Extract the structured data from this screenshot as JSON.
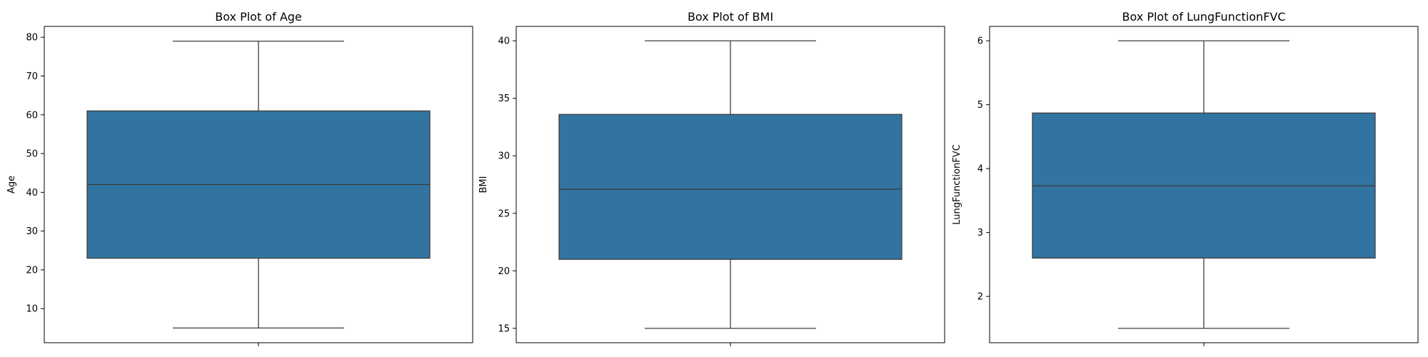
{
  "colors": {
    "box_fill": "#3274a1",
    "line": "#3d3d3d",
    "axis": "#000000",
    "background": "#ffffff"
  },
  "chart_data": [
    {
      "type": "box",
      "title": "Box Plot of Age",
      "xlabel": "",
      "ylabel": "Age",
      "ylim": [
        1.2,
        82.8
      ],
      "yticks": [
        10,
        20,
        30,
        40,
        50,
        60,
        70,
        80
      ],
      "grid": false,
      "box": {
        "whisker_low": 5,
        "q1": 23,
        "median": 42,
        "q3": 61,
        "whisker_high": 79
      }
    },
    {
      "type": "box",
      "title": "Box Plot of BMI",
      "xlabel": "",
      "ylabel": "BMI",
      "ylim": [
        13.75,
        41.25
      ],
      "yticks": [
        15,
        20,
        25,
        30,
        35,
        40
      ],
      "grid": false,
      "box": {
        "whisker_low": 15,
        "q1": 21,
        "median": 27.1,
        "q3": 33.6,
        "whisker_high": 40
      }
    },
    {
      "type": "box",
      "title": "Box Plot of LungFunctionFVC",
      "xlabel": "",
      "ylabel": "LungFunctionFVC",
      "ylim": [
        1.275,
        6.225
      ],
      "yticks": [
        2,
        3,
        4,
        5,
        6
      ],
      "grid": false,
      "box": {
        "whisker_low": 1.5,
        "q1": 2.6,
        "median": 3.73,
        "q3": 4.87,
        "whisker_high": 6
      }
    }
  ]
}
